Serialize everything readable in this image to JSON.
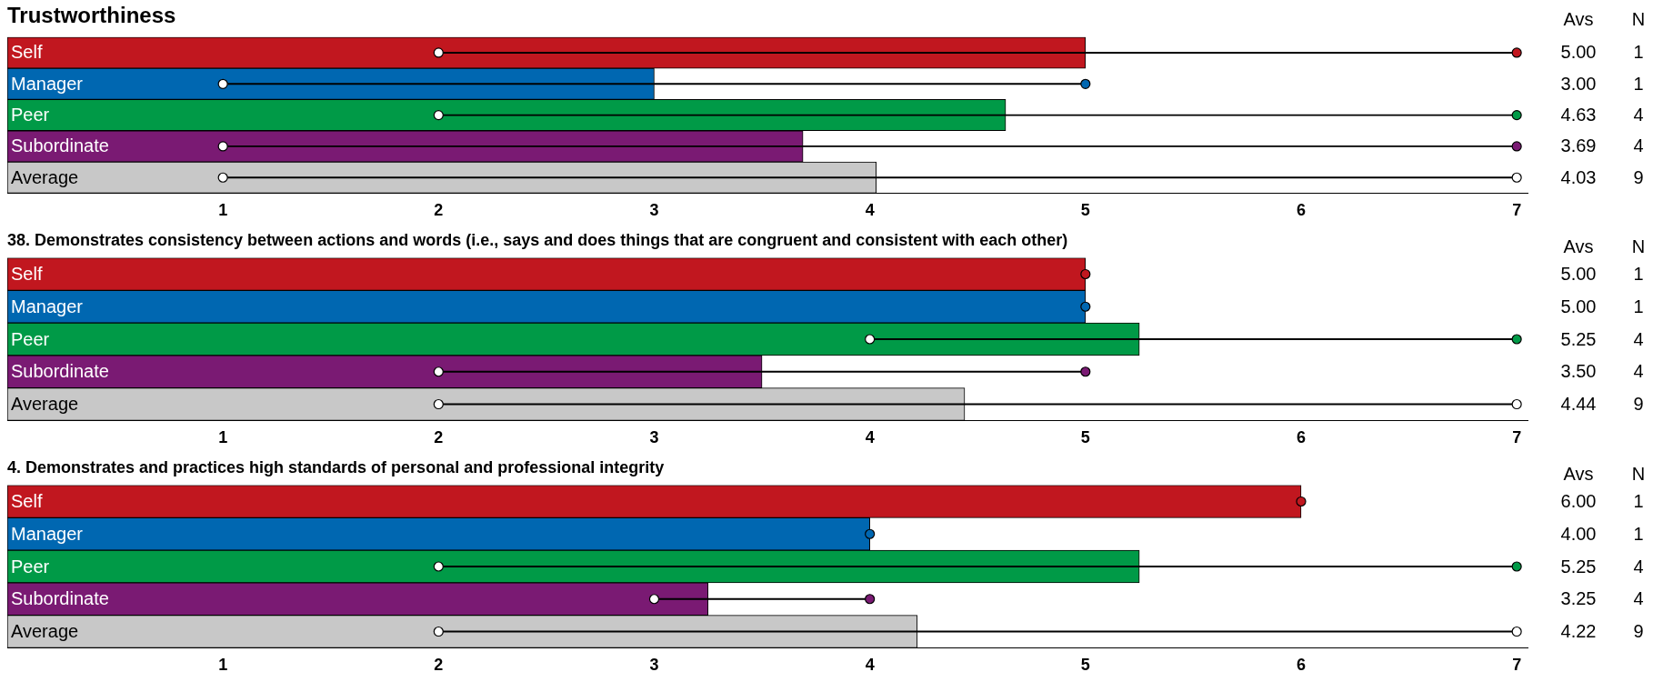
{
  "chart_data": [
    {
      "type": "bar",
      "orientation": "horizontal",
      "title": "Trustworthiness",
      "categories": [
        "Self",
        "Manager",
        "Peer",
        "Subordinate",
        "Average"
      ],
      "series": [
        {
          "type": "bar",
          "values": [
            5.0,
            3.0,
            4.63,
            3.69,
            4.03
          ],
          "value_labels": [
            "5.00",
            "3.00",
            "4.63",
            "3.69",
            "4.03"
          ],
          "colors": [
            "#c1171f",
            "#0067b1",
            "#009a47",
            "#7a1a73",
            "#c8c8c8"
          ]
        },
        {
          "type": "bar",
          "base": [
            2,
            1,
            2,
            1,
            1
          ],
          "values": [
            5,
            4,
            5,
            6,
            6
          ],
          "color": "#000000"
        },
        {
          "type": "scatter",
          "values": [
            2,
            1,
            2,
            1,
            1
          ],
          "color": "#ffffff"
        },
        {
          "type": "scatter",
          "values": [
            7,
            5,
            7,
            7,
            7
          ],
          "colors": [
            "#c1171f",
            "#0067b1",
            "#009a47",
            "#7a1a73",
            "#ffffff"
          ]
        }
      ],
      "xlim": [
        0,
        7.05
      ],
      "xticks": [
        1,
        2,
        3,
        4,
        5,
        6,
        7
      ],
      "marker": "circle",
      "grid": false,
      "legend": false,
      "annotations": [
        "Avs",
        "N",
        "1",
        "1",
        "4",
        "4",
        "9"
      ]
    },
    {
      "type": "bar",
      "orientation": "horizontal",
      "title": "38. Demonstrates consistency between actions and words (i.e., says and does things that are congruent and consistent with each other)",
      "categories": [
        "Self",
        "Manager",
        "Peer",
        "Subordinate",
        "Average"
      ],
      "series": [
        {
          "type": "bar",
          "values": [
            5.0,
            5.0,
            5.25,
            3.5,
            4.44
          ],
          "value_labels": [
            "5.00",
            "5.00",
            "5.25",
            "3.50",
            "4.44"
          ],
          "colors": [
            "#c1171f",
            "#0067b1",
            "#009a47",
            "#7a1a73",
            "#c8c8c8"
          ]
        },
        {
          "type": "bar",
          "base": [
            null,
            null,
            4,
            2,
            2
          ],
          "values": [
            null,
            null,
            3,
            3,
            5
          ],
          "color": "#000000"
        },
        {
          "type": "scatter",
          "values": [
            null,
            null,
            4,
            2,
            2
          ],
          "color": "#ffffff"
        },
        {
          "type": "scatter",
          "values": [
            5,
            5,
            7,
            5,
            7
          ],
          "colors": [
            "#c1171f",
            "#0067b1",
            "#009a47",
            "#7a1a73",
            "#ffffff"
          ]
        }
      ],
      "xlim": [
        0,
        7.05
      ],
      "xticks": [
        1,
        2,
        3,
        4,
        5,
        6,
        7
      ],
      "marker": "circle",
      "grid": false,
      "legend": false,
      "annotations": [
        "Avs",
        "N",
        "1",
        "1",
        "4",
        "4",
        "9"
      ]
    },
    {
      "type": "bar",
      "orientation": "horizontal",
      "title": "4. Demonstrates and practices high standards of personal and professional integrity",
      "categories": [
        "Self",
        "Manager",
        "Peer",
        "Subordinate",
        "Average"
      ],
      "series": [
        {
          "type": "bar",
          "values": [
            6.0,
            4.0,
            5.25,
            3.25,
            4.22
          ],
          "value_labels": [
            "6.00",
            "4.00",
            "5.25",
            "3.25",
            "4.22"
          ],
          "colors": [
            "#c1171f",
            "#0067b1",
            "#009a47",
            "#7a1a73",
            "#c8c8c8"
          ]
        },
        {
          "type": "bar",
          "base": [
            null,
            null,
            2,
            3,
            2
          ],
          "values": [
            null,
            null,
            5,
            1,
            5
          ],
          "color": "#000000"
        },
        {
          "type": "scatter",
          "values": [
            null,
            null,
            2,
            3,
            2
          ],
          "color": "#ffffff"
        },
        {
          "type": "scatter",
          "values": [
            6,
            4,
            7,
            4,
            7
          ],
          "colors": [
            "#c1171f",
            "#0067b1",
            "#009a47",
            "#7a1a73",
            "#ffffff"
          ]
        }
      ],
      "xlim": [
        0,
        7.05
      ],
      "xticks": [
        1,
        2,
        3,
        4,
        5,
        6,
        7
      ],
      "marker": "circle",
      "grid": false,
      "legend": false,
      "annotations": [
        "Avs",
        "N",
        "1",
        "1",
        "4",
        "4",
        "9"
      ]
    }
  ]
}
